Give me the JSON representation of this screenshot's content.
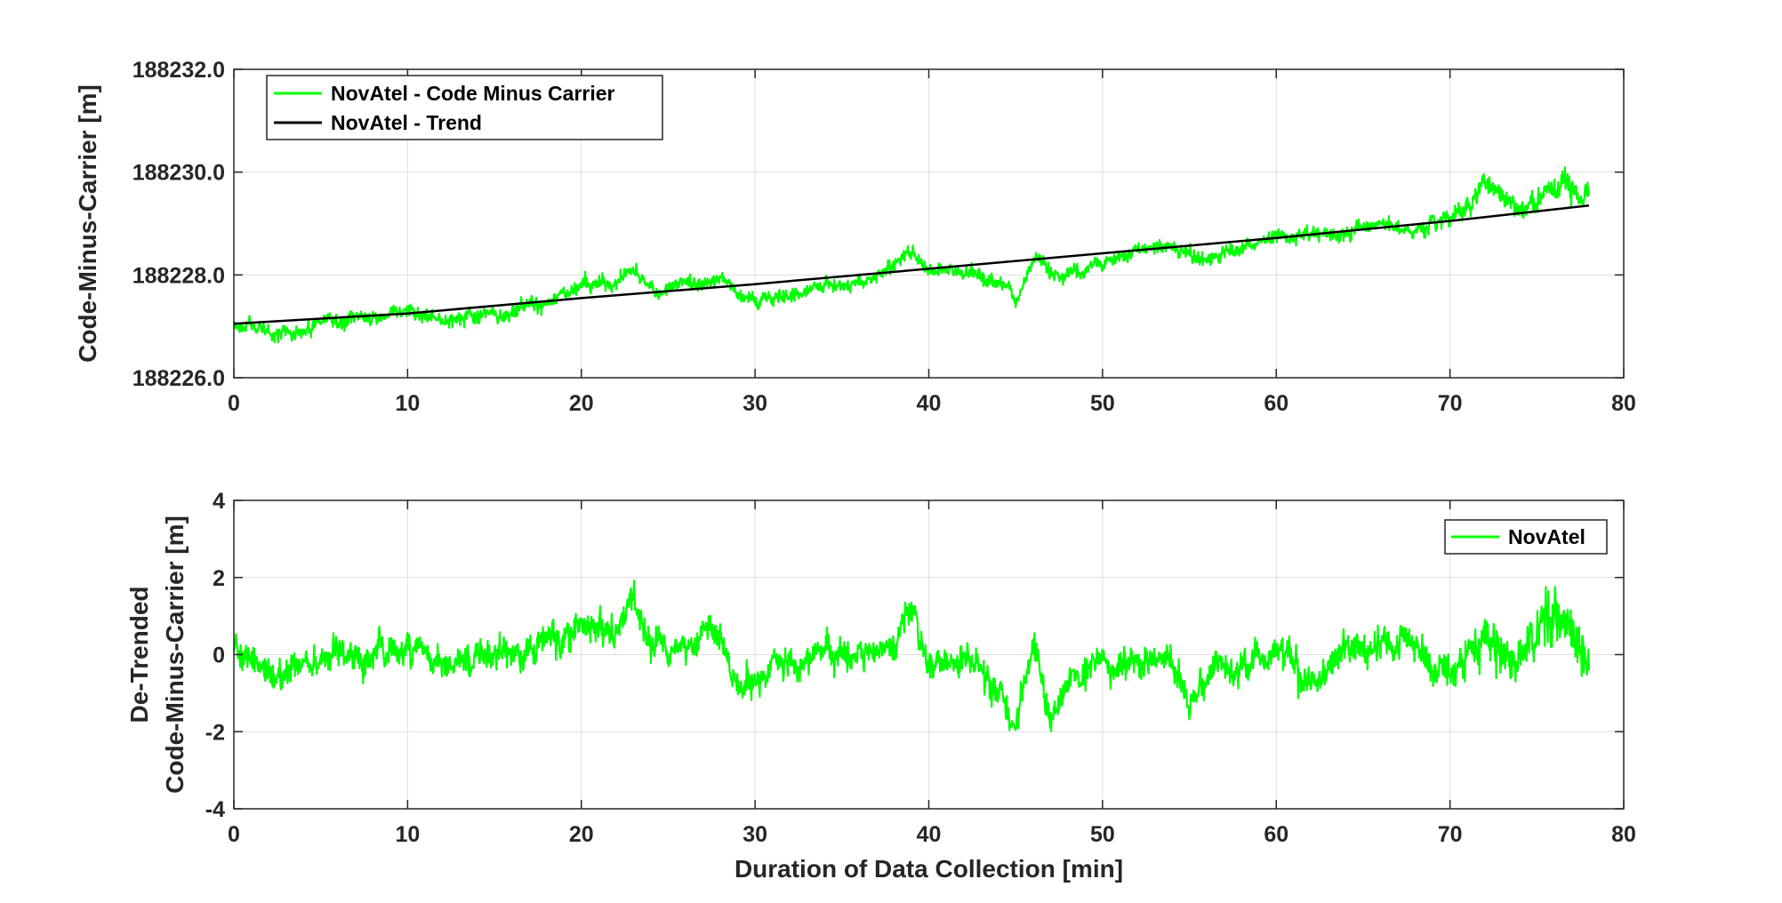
{
  "colors": {
    "raw": "#00ff00",
    "trend": "#000000",
    "axis": "#262626",
    "grid": "#dfdfdf"
  },
  "chart_data": [
    {
      "type": "line",
      "ylabel": "Code-Minus-Carrier [m]",
      "xlabel": "",
      "xlim": [
        0,
        80
      ],
      "ylim": [
        188226.0,
        188232.0
      ],
      "xticks": [
        0,
        10,
        20,
        30,
        40,
        50,
        60,
        70,
        80
      ],
      "yticks": [
        "188226.0",
        "188228.0",
        "188230.0",
        "188232.0"
      ],
      "grid": true,
      "legend": "top-left",
      "series": [
        {
          "name": "NovAtel - Code Minus Carrier",
          "color": "#00ff00",
          "x": [
            0,
            2,
            4,
            6,
            8,
            10,
            12,
            14,
            16,
            18,
            20,
            22,
            23,
            24,
            26,
            28,
            30,
            32,
            34,
            36,
            38,
            39,
            40,
            42,
            44,
            45,
            46,
            48,
            50,
            52,
            54,
            56,
            58,
            60,
            62,
            64,
            66,
            68,
            70,
            72,
            74,
            76,
            78
          ],
          "y": [
            188227.0,
            188226.9,
            188226.9,
            188227.2,
            188227.2,
            188227.3,
            188227.1,
            188227.2,
            188227.3,
            188227.5,
            188227.8,
            188227.8,
            188228.1,
            188227.7,
            188227.8,
            188227.9,
            188227.5,
            188227.6,
            188227.8,
            188227.8,
            188228.2,
            188228.4,
            188228.0,
            188228.1,
            188227.8,
            188227.5,
            188228.3,
            188228.0,
            188228.2,
            188228.4,
            188228.6,
            188228.3,
            188228.5,
            188228.7,
            188228.8,
            188228.8,
            188229.0,
            188228.9,
            188229.1,
            188229.7,
            188229.3,
            188229.6,
            188229.6
          ]
        },
        {
          "name": "NovAtel - Trend",
          "color": "#000000",
          "x": [
            0,
            10,
            20,
            30,
            40,
            50,
            60,
            70,
            78
          ],
          "y": [
            188227.05,
            188227.25,
            188227.55,
            188227.82,
            188228.12,
            188228.42,
            188228.72,
            188229.05,
            188229.35
          ]
        }
      ]
    },
    {
      "type": "line",
      "ylabel": "De-Trended\nCode-Minus-Carrier [m]",
      "xlabel": "Duration of Data Collection [min]",
      "xlim": [
        0,
        80
      ],
      "ylim": [
        -4,
        4
      ],
      "xticks": [
        0,
        10,
        20,
        30,
        40,
        50,
        60,
        70,
        80
      ],
      "yticks": [
        "-4",
        "-2",
        "0",
        "2",
        "4"
      ],
      "grid": true,
      "legend": "top-right",
      "series": [
        {
          "name": "NovAtel",
          "color": "#00ff00",
          "x": [
            0,
            2,
            4,
            6,
            8,
            10,
            12,
            14,
            16,
            18,
            20,
            22,
            23,
            24,
            26,
            28,
            29,
            30,
            32,
            34,
            36,
            38,
            39,
            40,
            42,
            44,
            45,
            46,
            47,
            48,
            50,
            52,
            54,
            55,
            56,
            58,
            60,
            62,
            64,
            66,
            68,
            70,
            72,
            74,
            76,
            78
          ],
          "y": [
            0.2,
            -0.4,
            -0.5,
            0.0,
            0.0,
            0.4,
            -0.3,
            0.0,
            0.0,
            0.3,
            0.7,
            0.7,
            1.4,
            0.3,
            0.3,
            0.5,
            -0.8,
            -0.5,
            -0.2,
            0.1,
            0.0,
            0.3,
            1.2,
            -0.2,
            -0.2,
            -0.9,
            -1.8,
            0.5,
            -1.6,
            -0.6,
            -0.4,
            -0.3,
            0.0,
            -1.4,
            -0.5,
            -0.3,
            0.1,
            -0.7,
            0.1,
            0.2,
            0.3,
            -0.5,
            0.6,
            -0.2,
            1.0,
            0.0
          ]
        }
      ]
    }
  ]
}
